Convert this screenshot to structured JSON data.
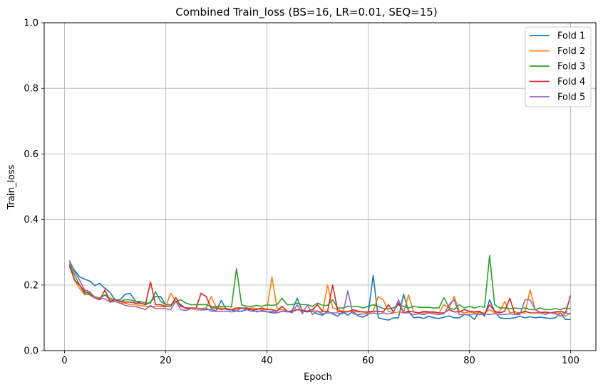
{
  "chart_data": {
    "type": "line",
    "title": "Combined Train_loss (BS=16, LR=0.01, SEQ=15)",
    "xlabel": "Epoch",
    "ylabel": "Train_loss",
    "xlim": [
      -4,
      105
    ],
    "ylim": [
      0,
      1
    ],
    "xticks": [
      0,
      20,
      40,
      60,
      80,
      100
    ],
    "yticks": [
      0.0,
      0.2,
      0.4,
      0.6,
      0.8,
      1.0
    ],
    "xtick_labels": [
      "0",
      "20",
      "40",
      "60",
      "80",
      "100"
    ],
    "ytick_labels": [
      "0.0",
      "0.2",
      "0.4",
      "0.6",
      "0.8",
      "1.0"
    ],
    "grid": true,
    "legend_position": "top-right",
    "x": [
      1,
      2,
      3,
      4,
      5,
      6,
      7,
      8,
      9,
      10,
      11,
      12,
      13,
      14,
      15,
      16,
      17,
      18,
      19,
      20,
      21,
      22,
      23,
      24,
      25,
      26,
      27,
      28,
      29,
      30,
      31,
      32,
      33,
      34,
      35,
      36,
      37,
      38,
      39,
      40,
      41,
      42,
      43,
      44,
      45,
      46,
      47,
      48,
      49,
      50,
      51,
      52,
      53,
      54,
      55,
      56,
      57,
      58,
      59,
      60,
      61,
      62,
      63,
      64,
      65,
      66,
      67,
      68,
      69,
      70,
      71,
      72,
      73,
      74,
      75,
      76,
      77,
      78,
      79,
      80,
      81,
      82,
      83,
      84,
      85,
      86,
      87,
      88,
      89,
      90,
      91,
      92,
      93,
      94,
      95,
      96,
      97,
      98,
      99,
      100
    ],
    "series": [
      {
        "name": "Fold 1",
        "color": "#1f77b4",
        "values": [
          0.27,
          0.245,
          0.225,
          0.218,
          0.212,
          0.198,
          0.205,
          0.19,
          0.178,
          0.155,
          0.155,
          0.172,
          0.174,
          0.152,
          0.145,
          0.14,
          0.148,
          0.165,
          0.165,
          0.14,
          0.14,
          0.15,
          0.14,
          0.128,
          0.128,
          0.125,
          0.124,
          0.125,
          0.125,
          0.122,
          0.153,
          0.125,
          0.124,
          0.12,
          0.12,
          0.125,
          0.125,
          0.118,
          0.122,
          0.119,
          0.115,
          0.115,
          0.12,
          0.118,
          0.122,
          0.16,
          0.12,
          0.118,
          0.12,
          0.112,
          0.108,
          0.12,
          0.112,
          0.105,
          0.118,
          0.108,
          0.12,
          0.106,
          0.102,
          0.11,
          0.23,
          0.1,
          0.096,
          0.093,
          0.1,
          0.1,
          0.172,
          0.12,
          0.1,
          0.102,
          0.098,
          0.105,
          0.1,
          0.098,
          0.102,
          0.106,
          0.1,
          0.1,
          0.11,
          0.108,
          0.095,
          0.12,
          0.105,
          0.155,
          0.12,
          0.1,
          0.098,
          0.098,
          0.1,
          0.105,
          0.1,
          0.103,
          0.1,
          0.102,
          0.1,
          0.098,
          0.1,
          0.115,
          0.095,
          0.095
        ]
      },
      {
        "name": "Fold 2",
        "color": "#ff7f0e",
        "values": [
          0.262,
          0.215,
          0.19,
          0.17,
          0.175,
          0.165,
          0.16,
          0.17,
          0.155,
          0.15,
          0.145,
          0.145,
          0.14,
          0.14,
          0.138,
          0.135,
          0.133,
          0.135,
          0.135,
          0.133,
          0.175,
          0.15,
          0.135,
          0.13,
          0.128,
          0.125,
          0.125,
          0.13,
          0.165,
          0.13,
          0.13,
          0.128,
          0.125,
          0.125,
          0.128,
          0.128,
          0.13,
          0.128,
          0.125,
          0.125,
          0.225,
          0.13,
          0.125,
          0.12,
          0.118,
          0.125,
          0.125,
          0.12,
          0.125,
          0.12,
          0.118,
          0.2,
          0.13,
          0.125,
          0.12,
          0.12,
          0.12,
          0.118,
          0.118,
          0.115,
          0.12,
          0.165,
          0.155,
          0.12,
          0.115,
          0.118,
          0.115,
          0.17,
          0.118,
          0.115,
          0.115,
          0.118,
          0.115,
          0.115,
          0.14,
          0.13,
          0.165,
          0.12,
          0.115,
          0.118,
          0.115,
          0.115,
          0.115,
          0.125,
          0.115,
          0.12,
          0.15,
          0.115,
          0.118,
          0.115,
          0.115,
          0.185,
          0.125,
          0.118,
          0.115,
          0.115,
          0.115,
          0.115,
          0.105,
          0.115
        ]
      },
      {
        "name": "Fold 3",
        "color": "#2ca02c",
        "values": [
          0.265,
          0.23,
          0.2,
          0.175,
          0.17,
          0.16,
          0.16,
          0.17,
          0.16,
          0.155,
          0.15,
          0.155,
          0.155,
          0.15,
          0.15,
          0.145,
          0.145,
          0.18,
          0.15,
          0.14,
          0.14,
          0.15,
          0.155,
          0.145,
          0.14,
          0.14,
          0.14,
          0.14,
          0.135,
          0.135,
          0.135,
          0.135,
          0.133,
          0.25,
          0.14,
          0.135,
          0.135,
          0.138,
          0.135,
          0.14,
          0.138,
          0.14,
          0.16,
          0.14,
          0.14,
          0.145,
          0.14,
          0.14,
          0.135,
          0.145,
          0.138,
          0.138,
          0.155,
          0.13,
          0.13,
          0.135,
          0.135,
          0.135,
          0.13,
          0.135,
          0.14,
          0.135,
          0.128,
          0.128,
          0.13,
          0.14,
          0.135,
          0.13,
          0.135,
          0.132,
          0.132,
          0.132,
          0.13,
          0.13,
          0.162,
          0.13,
          0.125,
          0.14,
          0.13,
          0.135,
          0.13,
          0.135,
          0.132,
          0.29,
          0.14,
          0.13,
          0.13,
          0.128,
          0.13,
          0.128,
          0.13,
          0.125,
          0.125,
          0.13,
          0.125,
          0.125,
          0.128,
          0.125,
          0.13,
          0.128
        ]
      },
      {
        "name": "Fold 4",
        "color": "#d62728",
        "values": [
          0.258,
          0.215,
          0.2,
          0.18,
          0.175,
          0.16,
          0.155,
          0.185,
          0.15,
          0.155,
          0.15,
          0.148,
          0.148,
          0.145,
          0.145,
          0.14,
          0.21,
          0.14,
          0.14,
          0.135,
          0.135,
          0.162,
          0.135,
          0.13,
          0.13,
          0.13,
          0.175,
          0.165,
          0.13,
          0.13,
          0.125,
          0.128,
          0.125,
          0.13,
          0.13,
          0.13,
          0.125,
          0.125,
          0.13,
          0.125,
          0.125,
          0.12,
          0.135,
          0.12,
          0.12,
          0.125,
          0.122,
          0.12,
          0.125,
          0.14,
          0.12,
          0.12,
          0.2,
          0.12,
          0.118,
          0.118,
          0.125,
          0.12,
          0.118,
          0.118,
          0.12,
          0.12,
          0.118,
          0.14,
          0.118,
          0.145,
          0.115,
          0.12,
          0.118,
          0.115,
          0.12,
          0.118,
          0.118,
          0.115,
          0.115,
          0.125,
          0.118,
          0.118,
          0.125,
          0.12,
          0.118,
          0.12,
          0.11,
          0.14,
          0.12,
          0.115,
          0.12,
          0.16,
          0.11,
          0.115,
          0.12,
          0.115,
          0.115,
          0.115,
          0.118,
          0.115,
          0.118,
          0.12,
          0.115,
          0.168
        ]
      },
      {
        "name": "Fold 5",
        "color": "#9467bd",
        "values": [
          0.275,
          0.24,
          0.215,
          0.185,
          0.18,
          0.16,
          0.158,
          0.158,
          0.148,
          0.15,
          0.145,
          0.138,
          0.135,
          0.135,
          0.13,
          0.125,
          0.138,
          0.128,
          0.128,
          0.128,
          0.125,
          0.15,
          0.125,
          0.122,
          0.128,
          0.13,
          0.128,
          0.13,
          0.12,
          0.12,
          0.12,
          0.12,
          0.118,
          0.12,
          0.13,
          0.125,
          0.12,
          0.12,
          0.12,
          0.118,
          0.12,
          0.115,
          0.12,
          0.12,
          0.115,
          0.14,
          0.112,
          0.14,
          0.11,
          0.12,
          0.112,
          0.115,
          0.115,
          0.115,
          0.112,
          0.182,
          0.112,
          0.11,
          0.112,
          0.112,
          0.115,
          0.112,
          0.115,
          0.112,
          0.115,
          0.155,
          0.115,
          0.115,
          0.11,
          0.112,
          0.11,
          0.115,
          0.112,
          0.11,
          0.112,
          0.14,
          0.155,
          0.11,
          0.11,
          0.11,
          0.112,
          0.11,
          0.112,
          0.11,
          0.112,
          0.11,
          0.11,
          0.112,
          0.11,
          0.11,
          0.155,
          0.155,
          0.125,
          0.115,
          0.11,
          0.115,
          0.112,
          0.105,
          0.115,
          0.112
        ]
      }
    ]
  }
}
